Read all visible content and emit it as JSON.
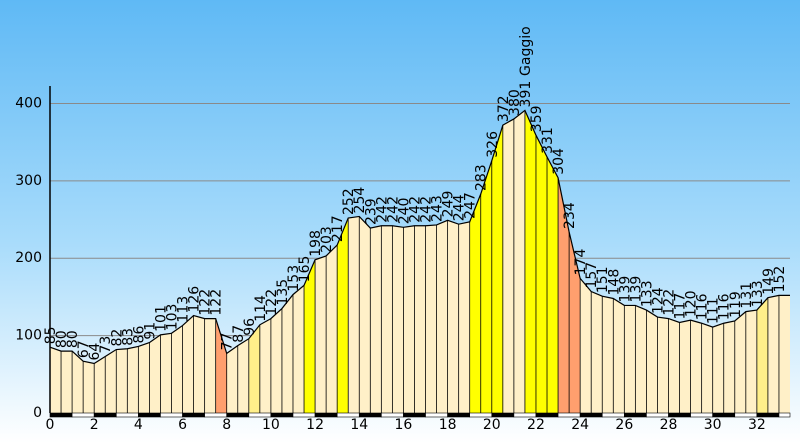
{
  "chart_data": {
    "type": "area",
    "title": "",
    "xlabel": "",
    "ylabel": "",
    "xlim": [
      0,
      33.5
    ],
    "ylim": [
      0,
      420
    ],
    "x_ticks": [
      0,
      2,
      4,
      6,
      8,
      10,
      12,
      14,
      16,
      18,
      20,
      22,
      24,
      26,
      28,
      30,
      32
    ],
    "y_ticks": [
      0,
      100,
      200,
      300,
      400
    ],
    "grid": true,
    "colors": {
      "fill_flat": "#fff0c8",
      "fill_gentle": "#ffef8a",
      "fill_steep": "#ffff00",
      "fill_descent": "#ff9f6e",
      "stroke": "#000000",
      "grid": "#8a8a8a",
      "sky_top": "#5fb9f5",
      "sky_bottom": "#ffffff"
    },
    "points": [
      {
        "x": 0.0,
        "y": 85,
        "label": "85",
        "fill": "flat"
      },
      {
        "x": 0.5,
        "y": 80,
        "label": "80",
        "fill": "flat"
      },
      {
        "x": 1.0,
        "y": 80,
        "label": "80",
        "fill": "flat"
      },
      {
        "x": 1.5,
        "y": 67,
        "label": "67",
        "fill": "flat"
      },
      {
        "x": 2.0,
        "y": 64,
        "label": "64",
        "fill": "flat"
      },
      {
        "x": 2.5,
        "y": 73,
        "label": "73",
        "fill": "flat"
      },
      {
        "x": 3.0,
        "y": 82,
        "label": "82",
        "fill": "flat"
      },
      {
        "x": 3.5,
        "y": 83,
        "label": "83",
        "fill": "flat"
      },
      {
        "x": 4.0,
        "y": 86,
        "label": "86",
        "fill": "flat"
      },
      {
        "x": 4.5,
        "y": 91,
        "label": "91",
        "fill": "flat"
      },
      {
        "x": 5.0,
        "y": 101,
        "label": "101",
        "fill": "flat"
      },
      {
        "x": 5.5,
        "y": 103,
        "label": "103",
        "fill": "flat"
      },
      {
        "x": 6.0,
        "y": 113,
        "label": "113",
        "fill": "flat"
      },
      {
        "x": 6.5,
        "y": 126,
        "label": "126",
        "fill": "flat"
      },
      {
        "x": 7.0,
        "y": 122,
        "label": "122",
        "fill": "flat"
      },
      {
        "x": 7.5,
        "y": 122,
        "label": "122",
        "fill": "flat"
      },
      {
        "x": 8.0,
        "y": 77,
        "label": "77",
        "fill": "descent"
      },
      {
        "x": 8.5,
        "y": 87,
        "label": "87",
        "fill": "flat"
      },
      {
        "x": 9.0,
        "y": 96,
        "label": "96",
        "fill": "flat"
      },
      {
        "x": 9.5,
        "y": 114,
        "label": "114",
        "fill": "gentle"
      },
      {
        "x": 10.0,
        "y": 122,
        "label": "122",
        "fill": "flat"
      },
      {
        "x": 10.5,
        "y": 135,
        "label": "135",
        "fill": "flat"
      },
      {
        "x": 11.0,
        "y": 153,
        "label": "153",
        "fill": "flat"
      },
      {
        "x": 11.5,
        "y": 165,
        "label": "165",
        "fill": "flat"
      },
      {
        "x": 12.0,
        "y": 198,
        "label": "198",
        "fill": "steep"
      },
      {
        "x": 12.5,
        "y": 203,
        "label": "203",
        "fill": "flat"
      },
      {
        "x": 13.0,
        "y": 217,
        "label": "217",
        "fill": "flat"
      },
      {
        "x": 13.5,
        "y": 252,
        "label": "252",
        "fill": "steep"
      },
      {
        "x": 14.0,
        "y": 254,
        "label": "254",
        "fill": "flat"
      },
      {
        "x": 14.5,
        "y": 239,
        "label": "239",
        "fill": "flat"
      },
      {
        "x": 15.0,
        "y": 242,
        "label": "242",
        "fill": "flat"
      },
      {
        "x": 15.5,
        "y": 242,
        "label": "242",
        "fill": "flat"
      },
      {
        "x": 16.0,
        "y": 240,
        "label": "240",
        "fill": "flat"
      },
      {
        "x": 16.5,
        "y": 242,
        "label": "242",
        "fill": "flat"
      },
      {
        "x": 17.0,
        "y": 242,
        "label": "242",
        "fill": "flat"
      },
      {
        "x": 17.5,
        "y": 243,
        "label": "243",
        "fill": "flat"
      },
      {
        "x": 18.0,
        "y": 249,
        "label": "249",
        "fill": "flat"
      },
      {
        "x": 18.5,
        "y": 244,
        "label": "244",
        "fill": "flat"
      },
      {
        "x": 19.0,
        "y": 247,
        "label": "247",
        "fill": "flat"
      },
      {
        "x": 19.5,
        "y": 283,
        "label": "283",
        "fill": "steep"
      },
      {
        "x": 20.0,
        "y": 326,
        "label": "326",
        "fill": "steep"
      },
      {
        "x": 20.5,
        "y": 372,
        "label": "372",
        "fill": "steep"
      },
      {
        "x": 21.0,
        "y": 380,
        "label": "380",
        "fill": "flat"
      },
      {
        "x": 21.5,
        "y": 391,
        "label": "391",
        "fill": "flat"
      },
      {
        "x": 22.0,
        "y": 359,
        "label": "359",
        "fill": "steep"
      },
      {
        "x": 22.5,
        "y": 331,
        "label": "331",
        "fill": "steep"
      },
      {
        "x": 23.0,
        "y": 304,
        "label": "304",
        "fill": "steep"
      },
      {
        "x": 23.5,
        "y": 234,
        "label": "234",
        "fill": "descent"
      },
      {
        "x": 24.0,
        "y": 174,
        "label": "174",
        "fill": "descent"
      },
      {
        "x": 24.5,
        "y": 157,
        "label": "157",
        "fill": "flat"
      },
      {
        "x": 25.0,
        "y": 151,
        "label": "151",
        "fill": "flat"
      },
      {
        "x": 25.5,
        "y": 148,
        "label": "148",
        "fill": "flat"
      },
      {
        "x": 26.0,
        "y": 139,
        "label": "139",
        "fill": "flat"
      },
      {
        "x": 26.5,
        "y": 139,
        "label": "139",
        "fill": "flat"
      },
      {
        "x": 27.0,
        "y": 133,
        "label": "133",
        "fill": "flat"
      },
      {
        "x": 27.5,
        "y": 124,
        "label": "124",
        "fill": "flat"
      },
      {
        "x": 28.0,
        "y": 122,
        "label": "122",
        "fill": "flat"
      },
      {
        "x": 28.5,
        "y": 117,
        "label": "117",
        "fill": "flat"
      },
      {
        "x": 29.0,
        "y": 120,
        "label": "120",
        "fill": "flat"
      },
      {
        "x": 29.5,
        "y": 116,
        "label": "116",
        "fill": "flat"
      },
      {
        "x": 30.0,
        "y": 111,
        "label": "111",
        "fill": "flat"
      },
      {
        "x": 30.5,
        "y": 116,
        "label": "116",
        "fill": "flat"
      },
      {
        "x": 31.0,
        "y": 119,
        "label": "119",
        "fill": "flat"
      },
      {
        "x": 31.5,
        "y": 131,
        "label": "131",
        "fill": "flat"
      },
      {
        "x": 32.0,
        "y": 133,
        "label": "133",
        "fill": "flat"
      },
      {
        "x": 32.5,
        "y": 149,
        "label": "149",
        "fill": "gentle"
      },
      {
        "x": 33.0,
        "y": 152,
        "label": "152",
        "fill": "flat"
      }
    ],
    "annotations": [
      {
        "x": 21.5,
        "y": 391,
        "text": "Gaggio"
      }
    ]
  }
}
